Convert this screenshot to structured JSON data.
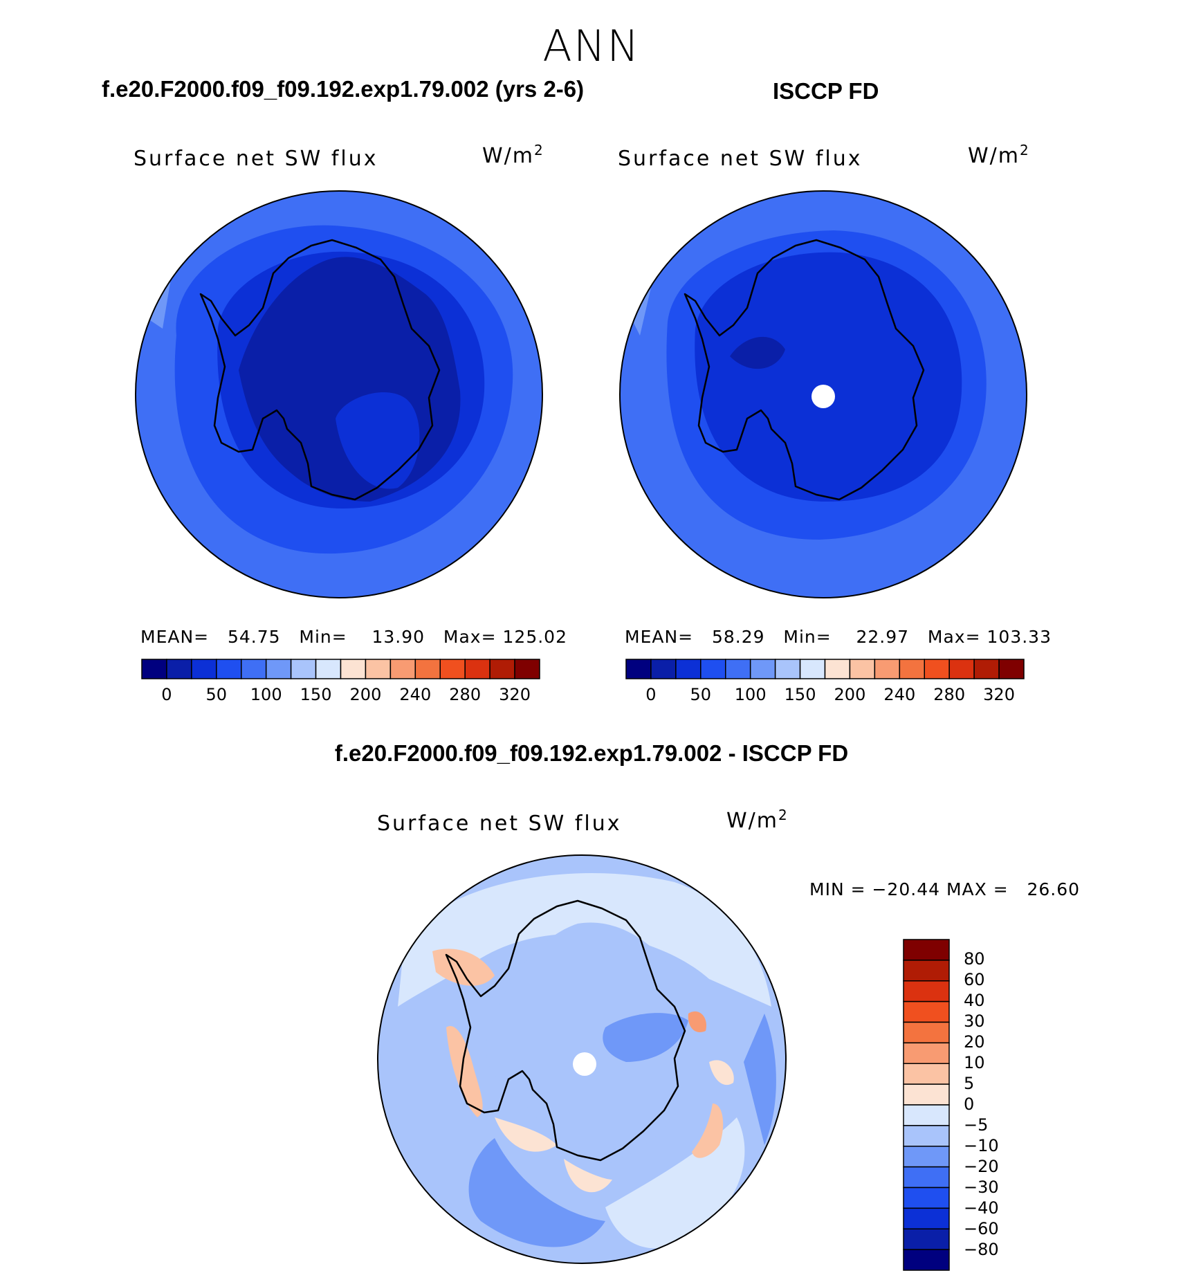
{
  "page_title": "ANN",
  "panels": [
    {
      "case_title": "f.e20.F2000.f09_f09.192.exp1.79.002 (yrs 2-6)",
      "variable": "Surface net SW flux",
      "units": "W/m",
      "units_exp": "2",
      "stats": {
        "mean_label": "MEAN=",
        "mean": "54.75",
        "min_label": "Min=",
        "min": "13.90",
        "max_label": "Max=",
        "max": "125.02"
      }
    },
    {
      "case_title": "ISCCP FD",
      "variable": "Surface net SW flux",
      "units": "W/m",
      "units_exp": "2",
      "stats": {
        "mean_label": "MEAN=",
        "mean": "58.29",
        "min_label": "Min=",
        "min": "22.97",
        "max_label": "Max=",
        "max": "103.33"
      }
    },
    {
      "case_title": "f.e20.F2000.f09_f09.192.exp1.79.002 - ISCCP FD",
      "variable": "Surface net SW flux",
      "units": "W/m",
      "units_exp": "2",
      "minmax_text": "MIN = −20.44 MAX =   26.60"
    }
  ],
  "chart_data": [
    {
      "type": "heatmap",
      "projection": "south-polar-stereographic",
      "title": "Surface net SW flux",
      "units": "W/m2",
      "mean": 54.75,
      "min": 13.9,
      "max": 125.02,
      "colorbar_ticks": [
        "0",
        "50",
        "100",
        "150",
        "200",
        "240",
        "280",
        "320"
      ],
      "colorbar_colors": [
        "#00007f",
        "#0a1fa8",
        "#0c30d6",
        "#1f4ff0",
        "#3f6ff5",
        "#6f98f8",
        "#a9c4fb",
        "#d8e7fd",
        "#fce3d3",
        "#fbc3a4",
        "#f89b72",
        "#f3733f",
        "#f0501f",
        "#db3210",
        "#b01c05",
        "#7f0000"
      ],
      "legend_position": "bottom"
    },
    {
      "type": "heatmap",
      "projection": "south-polar-stereographic",
      "title": "Surface net SW flux",
      "units": "W/m2",
      "mean": 58.29,
      "min": 22.97,
      "max": 103.33,
      "colorbar_ticks": [
        "0",
        "50",
        "100",
        "150",
        "200",
        "240",
        "280",
        "320"
      ],
      "colorbar_colors": [
        "#00007f",
        "#0a1fa8",
        "#0c30d6",
        "#1f4ff0",
        "#3f6ff5",
        "#6f98f8",
        "#a9c4fb",
        "#d8e7fd",
        "#fce3d3",
        "#fbc3a4",
        "#f89b72",
        "#f3733f",
        "#f0501f",
        "#db3210",
        "#b01c05",
        "#7f0000"
      ],
      "legend_position": "bottom"
    },
    {
      "type": "heatmap",
      "projection": "south-polar-stereographic",
      "title": "Surface net SW flux",
      "units": "W/m2",
      "min": -20.44,
      "max": 26.6,
      "colorbar_ticks": [
        "80",
        "60",
        "40",
        "30",
        "20",
        "10",
        "5",
        "0",
        "−5",
        "−10",
        "−20",
        "−30",
        "−40",
        "−60",
        "−80"
      ],
      "colorbar_colors": [
        "#7f0000",
        "#b01c05",
        "#db3210",
        "#f0501f",
        "#f3733f",
        "#f89b72",
        "#fbc3a4",
        "#fce3d3",
        "#d8e7fd",
        "#a9c4fb",
        "#6f98f8",
        "#3f6ff5",
        "#1f4ff0",
        "#0c30d6",
        "#0a1fa8",
        "#00007f"
      ],
      "legend_position": "right"
    }
  ]
}
